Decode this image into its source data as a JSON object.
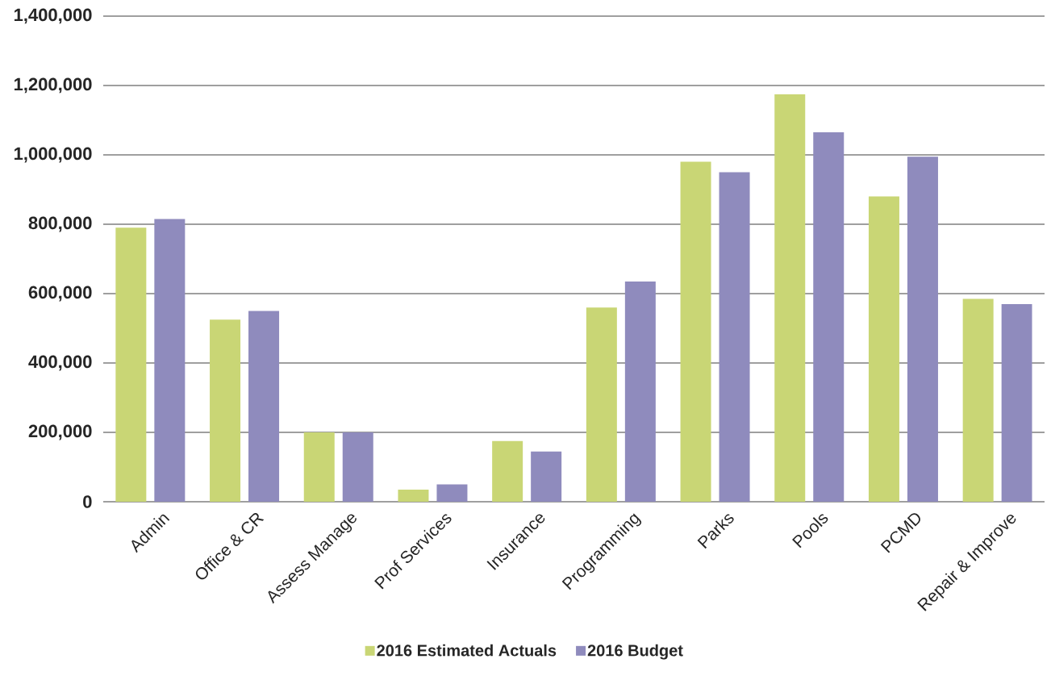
{
  "chart_data": {
    "type": "bar",
    "categories": [
      "Admin",
      "Office & CR",
      "Assess Manage",
      "Prof Services",
      "Insurance",
      "Programming",
      "Parks",
      "Pools",
      "PCMD",
      "Repair & Improve"
    ],
    "series": [
      {
        "name": "2016 Estimated Actuals",
        "color": "#c9d675",
        "values": [
          790000,
          525000,
          200000,
          35000,
          175000,
          560000,
          980000,
          1175000,
          880000,
          585000
        ]
      },
      {
        "name": "2016 Budget",
        "color": "#8f8bbd",
        "values": [
          815000,
          550000,
          200000,
          50000,
          145000,
          635000,
          950000,
          1065000,
          995000,
          570000
        ]
      }
    ],
    "ylim": [
      0,
      1400000
    ],
    "yticks": [
      0,
      {
        "value": 200000,
        "label": "200,000"
      },
      {
        "value": 400000,
        "label": "400,000"
      },
      {
        "value": 600000,
        "label": "600,000"
      },
      {
        "value": 800000,
        "label": "800,000"
      },
      {
        "value": 1000000,
        "label": "1,000,000"
      },
      {
        "value": 1200000,
        "label": "1,200,000"
      },
      {
        "value": 1400000,
        "label": "1,400,000"
      }
    ],
    "grid": "y",
    "legend": "bottom"
  }
}
